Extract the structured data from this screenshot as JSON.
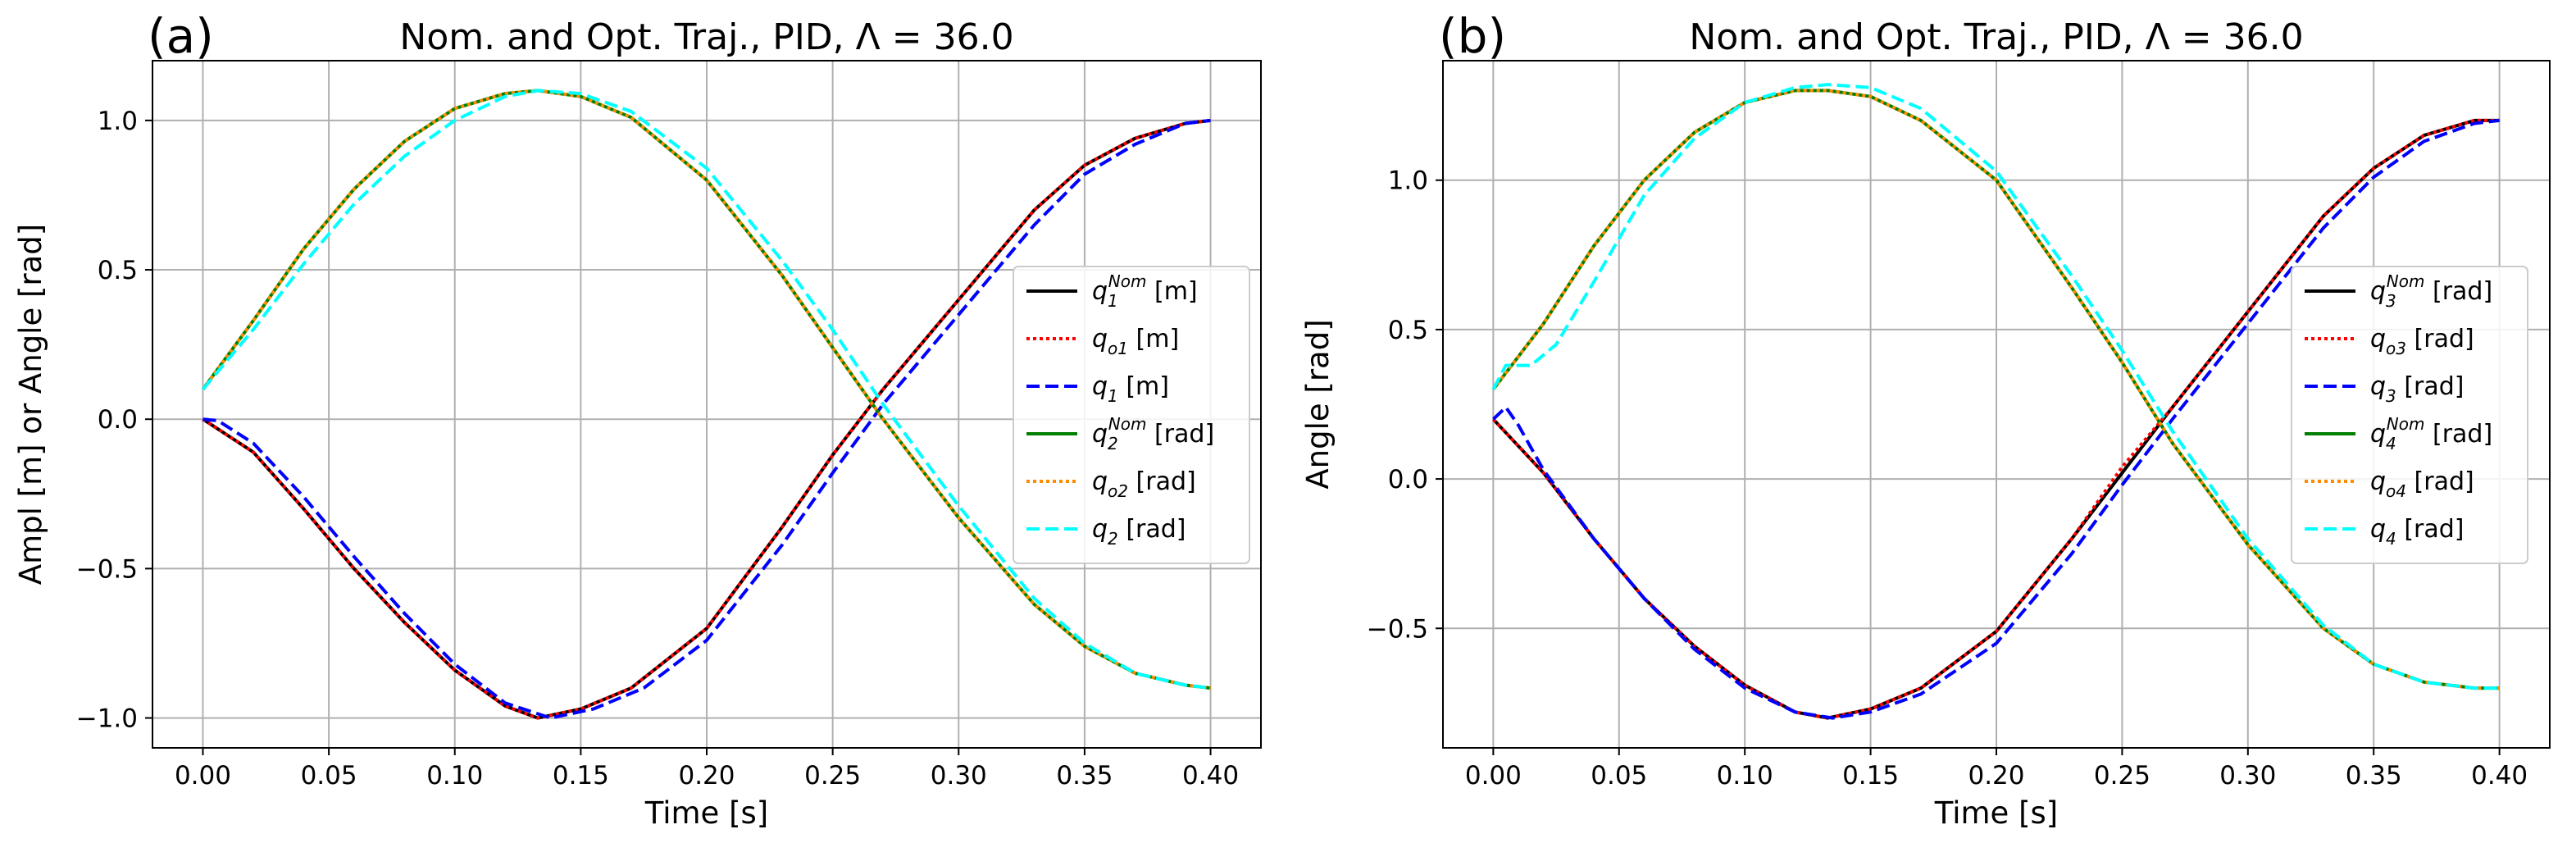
{
  "chart_data": [
    {
      "panel_label": "(a)",
      "type": "line",
      "title": "Nom. and Opt. Traj., PID, Λ = 36.0",
      "xlabel": "Time  [s]",
      "ylabel": "Ampl [m] or Angle [rad]",
      "xlim": [
        -0.02,
        0.42
      ],
      "ylim": [
        -1.1,
        1.2
      ],
      "xticks": [
        0.0,
        0.05,
        0.1,
        0.15,
        0.2,
        0.25,
        0.3,
        0.35,
        0.4
      ],
      "xtick_labels": [
        "0.00",
        "0.05",
        "0.10",
        "0.15",
        "0.20",
        "0.25",
        "0.30",
        "0.35",
        "0.40"
      ],
      "yticks": [
        -1.0,
        -0.5,
        0.0,
        0.5,
        1.0
      ],
      "ytick_labels": [
        "−1.0",
        "−0.5",
        "0.0",
        "0.5",
        "1.0"
      ],
      "grid": true,
      "legend_position": "center-right",
      "series": [
        {
          "legend_base": "q",
          "legend_sub": "1",
          "legend_sup": "Nom",
          "legend_unit": " [m]",
          "color": "#000000",
          "style": "solid",
          "x": [
            0.0,
            0.02,
            0.04,
            0.06,
            0.08,
            0.1,
            0.12,
            0.133,
            0.15,
            0.17,
            0.2,
            0.23,
            0.25,
            0.27,
            0.3,
            0.33,
            0.35,
            0.37,
            0.39,
            0.4
          ],
          "y": [
            0.0,
            -0.11,
            -0.3,
            -0.5,
            -0.68,
            -0.84,
            -0.96,
            -1.0,
            -0.97,
            -0.9,
            -0.7,
            -0.36,
            -0.12,
            0.1,
            0.4,
            0.7,
            0.85,
            0.94,
            0.99,
            1.0
          ]
        },
        {
          "legend_base": "q",
          "legend_sub": "o1",
          "legend_sup": "",
          "legend_unit": " [m]",
          "color": "#ff0000",
          "style": "dotted",
          "x": [
            0.0,
            0.02,
            0.04,
            0.06,
            0.08,
            0.1,
            0.12,
            0.133,
            0.15,
            0.17,
            0.2,
            0.23,
            0.25,
            0.27,
            0.3,
            0.33,
            0.35,
            0.37,
            0.39,
            0.4
          ],
          "y": [
            0.0,
            -0.11,
            -0.3,
            -0.5,
            -0.68,
            -0.84,
            -0.96,
            -1.0,
            -0.97,
            -0.9,
            -0.7,
            -0.36,
            -0.12,
            0.1,
            0.4,
            0.7,
            0.85,
            0.94,
            0.99,
            1.0
          ]
        },
        {
          "legend_base": "q",
          "legend_sub": "1",
          "legend_sup": "",
          "legend_unit": " [m]",
          "color": "#0000ff",
          "style": "dashed",
          "x": [
            0.0,
            0.006,
            0.02,
            0.04,
            0.06,
            0.08,
            0.1,
            0.12,
            0.138,
            0.155,
            0.175,
            0.2,
            0.23,
            0.25,
            0.27,
            0.3,
            0.33,
            0.35,
            0.37,
            0.39,
            0.4
          ],
          "y": [
            0.0,
            -0.005,
            -0.08,
            -0.26,
            -0.46,
            -0.65,
            -0.82,
            -0.95,
            -1.0,
            -0.97,
            -0.9,
            -0.74,
            -0.42,
            -0.18,
            0.05,
            0.35,
            0.65,
            0.82,
            0.92,
            0.99,
            1.0
          ]
        },
        {
          "legend_base": "q",
          "legend_sub": "2",
          "legend_sup": "Nom",
          "legend_unit": " [rad]",
          "color": "#008000",
          "style": "solid",
          "x": [
            0.0,
            0.02,
            0.04,
            0.06,
            0.08,
            0.1,
            0.12,
            0.133,
            0.15,
            0.17,
            0.2,
            0.23,
            0.25,
            0.27,
            0.3,
            0.33,
            0.35,
            0.37,
            0.39,
            0.4
          ],
          "y": [
            0.1,
            0.33,
            0.57,
            0.77,
            0.93,
            1.04,
            1.09,
            1.1,
            1.08,
            1.01,
            0.8,
            0.48,
            0.24,
            0.0,
            -0.33,
            -0.62,
            -0.76,
            -0.85,
            -0.89,
            -0.9
          ]
        },
        {
          "legend_base": "q",
          "legend_sub": "o2",
          "legend_sup": "",
          "legend_unit": " [rad]",
          "color": "#ff8c00",
          "style": "dotted",
          "x": [
            0.0,
            0.02,
            0.04,
            0.06,
            0.08,
            0.1,
            0.12,
            0.133,
            0.15,
            0.17,
            0.2,
            0.23,
            0.25,
            0.27,
            0.3,
            0.33,
            0.35,
            0.37,
            0.39,
            0.4
          ],
          "y": [
            0.1,
            0.33,
            0.57,
            0.77,
            0.93,
            1.04,
            1.09,
            1.1,
            1.08,
            1.01,
            0.8,
            0.48,
            0.24,
            0.0,
            -0.33,
            -0.62,
            -0.76,
            -0.85,
            -0.89,
            -0.9
          ]
        },
        {
          "legend_base": "q",
          "legend_sub": "2",
          "legend_sup": "",
          "legend_unit": " [rad]",
          "color": "#00ffff",
          "style": "dashed",
          "x": [
            0.0,
            0.02,
            0.04,
            0.06,
            0.08,
            0.1,
            0.12,
            0.133,
            0.15,
            0.17,
            0.2,
            0.23,
            0.25,
            0.27,
            0.3,
            0.33,
            0.35,
            0.37,
            0.39,
            0.4
          ],
          "y": [
            0.1,
            0.3,
            0.52,
            0.72,
            0.88,
            1.0,
            1.08,
            1.1,
            1.09,
            1.03,
            0.84,
            0.53,
            0.3,
            0.05,
            -0.29,
            -0.6,
            -0.75,
            -0.85,
            -0.89,
            -0.9
          ]
        }
      ]
    },
    {
      "panel_label": "(b)",
      "type": "line",
      "title": "Nom. and Opt. Traj., PID, Λ = 36.0",
      "xlabel": "Time [s]",
      "ylabel": "Angle [rad]",
      "xlim": [
        -0.02,
        0.42
      ],
      "ylim": [
        -0.9,
        1.4
      ],
      "xticks": [
        0.0,
        0.05,
        0.1,
        0.15,
        0.2,
        0.25,
        0.3,
        0.35,
        0.4
      ],
      "xtick_labels": [
        "0.00",
        "0.05",
        "0.10",
        "0.15",
        "0.20",
        "0.25",
        "0.30",
        "0.35",
        "0.40"
      ],
      "yticks": [
        -0.5,
        0.0,
        0.5,
        1.0
      ],
      "ytick_labels": [
        "−0.5",
        "0.0",
        "0.5",
        "1.0"
      ],
      "grid": true,
      "legend_position": "center-right",
      "series": [
        {
          "legend_base": "q",
          "legend_sub": "3",
          "legend_sup": "Nom",
          "legend_unit": " [rad]",
          "color": "#000000",
          "style": "solid",
          "x": [
            0.0,
            0.02,
            0.04,
            0.06,
            0.08,
            0.1,
            0.12,
            0.133,
            0.15,
            0.17,
            0.2,
            0.23,
            0.25,
            0.27,
            0.3,
            0.33,
            0.35,
            0.37,
            0.39,
            0.4
          ],
          "y": [
            0.2,
            0.02,
            -0.2,
            -0.4,
            -0.56,
            -0.69,
            -0.78,
            -0.8,
            -0.77,
            -0.7,
            -0.51,
            -0.2,
            0.02,
            0.24,
            0.56,
            0.88,
            1.04,
            1.15,
            1.2,
            1.2
          ]
        },
        {
          "legend_base": "q",
          "legend_sub": "o3",
          "legend_sup": "",
          "legend_unit": " [rad]",
          "color": "#ff0000",
          "style": "dotted",
          "x": [
            0.0,
            0.02,
            0.04,
            0.06,
            0.08,
            0.1,
            0.12,
            0.133,
            0.15,
            0.17,
            0.2,
            0.23,
            0.25,
            0.27,
            0.3,
            0.33,
            0.35,
            0.37,
            0.39,
            0.4
          ],
          "y": [
            0.2,
            0.02,
            -0.2,
            -0.4,
            -0.56,
            -0.69,
            -0.78,
            -0.8,
            -0.77,
            -0.7,
            -0.51,
            -0.2,
            0.04,
            0.24,
            0.56,
            0.88,
            1.04,
            1.15,
            1.2,
            1.2
          ]
        },
        {
          "legend_base": "q",
          "legend_sub": "3",
          "legend_sup": "",
          "legend_unit": " [rad]",
          "color": "#0000ff",
          "style": "dashed",
          "x": [
            0.0,
            0.005,
            0.01,
            0.02,
            0.04,
            0.06,
            0.08,
            0.1,
            0.12,
            0.135,
            0.15,
            0.17,
            0.2,
            0.23,
            0.25,
            0.27,
            0.3,
            0.33,
            0.35,
            0.37,
            0.39,
            0.4
          ],
          "y": [
            0.2,
            0.24,
            0.18,
            0.03,
            -0.2,
            -0.4,
            -0.57,
            -0.7,
            -0.78,
            -0.8,
            -0.78,
            -0.72,
            -0.55,
            -0.25,
            -0.02,
            0.2,
            0.52,
            0.84,
            1.01,
            1.13,
            1.19,
            1.2
          ]
        },
        {
          "legend_base": "q",
          "legend_sub": "4",
          "legend_sup": "Nom",
          "legend_unit": " [rad]",
          "color": "#008000",
          "style": "solid",
          "x": [
            0.0,
            0.02,
            0.04,
            0.06,
            0.08,
            0.1,
            0.12,
            0.133,
            0.15,
            0.17,
            0.2,
            0.23,
            0.25,
            0.27,
            0.3,
            0.33,
            0.35,
            0.37,
            0.39,
            0.4
          ],
          "y": [
            0.3,
            0.52,
            0.78,
            1.0,
            1.16,
            1.26,
            1.3,
            1.3,
            1.28,
            1.2,
            1.0,
            0.64,
            0.39,
            0.12,
            -0.22,
            -0.5,
            -0.62,
            -0.68,
            -0.7,
            -0.7
          ]
        },
        {
          "legend_base": "q",
          "legend_sub": "o4",
          "legend_sup": "",
          "legend_unit": " [rad]",
          "color": "#ff8c00",
          "style": "dotted",
          "x": [
            0.0,
            0.02,
            0.04,
            0.06,
            0.08,
            0.1,
            0.12,
            0.133,
            0.15,
            0.17,
            0.2,
            0.23,
            0.25,
            0.27,
            0.3,
            0.33,
            0.35,
            0.37,
            0.39,
            0.4
          ],
          "y": [
            0.3,
            0.52,
            0.78,
            1.0,
            1.16,
            1.26,
            1.3,
            1.3,
            1.28,
            1.2,
            1.0,
            0.64,
            0.39,
            0.12,
            -0.22,
            -0.5,
            -0.62,
            -0.68,
            -0.7,
            -0.7
          ]
        },
        {
          "legend_base": "q",
          "legend_sub": "4",
          "legend_sup": "",
          "legend_unit": " [rad]",
          "color": "#00ffff",
          "style": "dashed",
          "x": [
            0.0,
            0.005,
            0.015,
            0.025,
            0.04,
            0.06,
            0.08,
            0.1,
            0.12,
            0.133,
            0.15,
            0.17,
            0.2,
            0.23,
            0.25,
            0.27,
            0.3,
            0.33,
            0.35,
            0.37,
            0.39,
            0.4
          ],
          "y": [
            0.3,
            0.38,
            0.38,
            0.45,
            0.66,
            0.95,
            1.14,
            1.26,
            1.31,
            1.32,
            1.31,
            1.24,
            1.03,
            0.68,
            0.43,
            0.16,
            -0.2,
            -0.49,
            -0.62,
            -0.68,
            -0.7,
            -0.7
          ]
        }
      ]
    }
  ]
}
